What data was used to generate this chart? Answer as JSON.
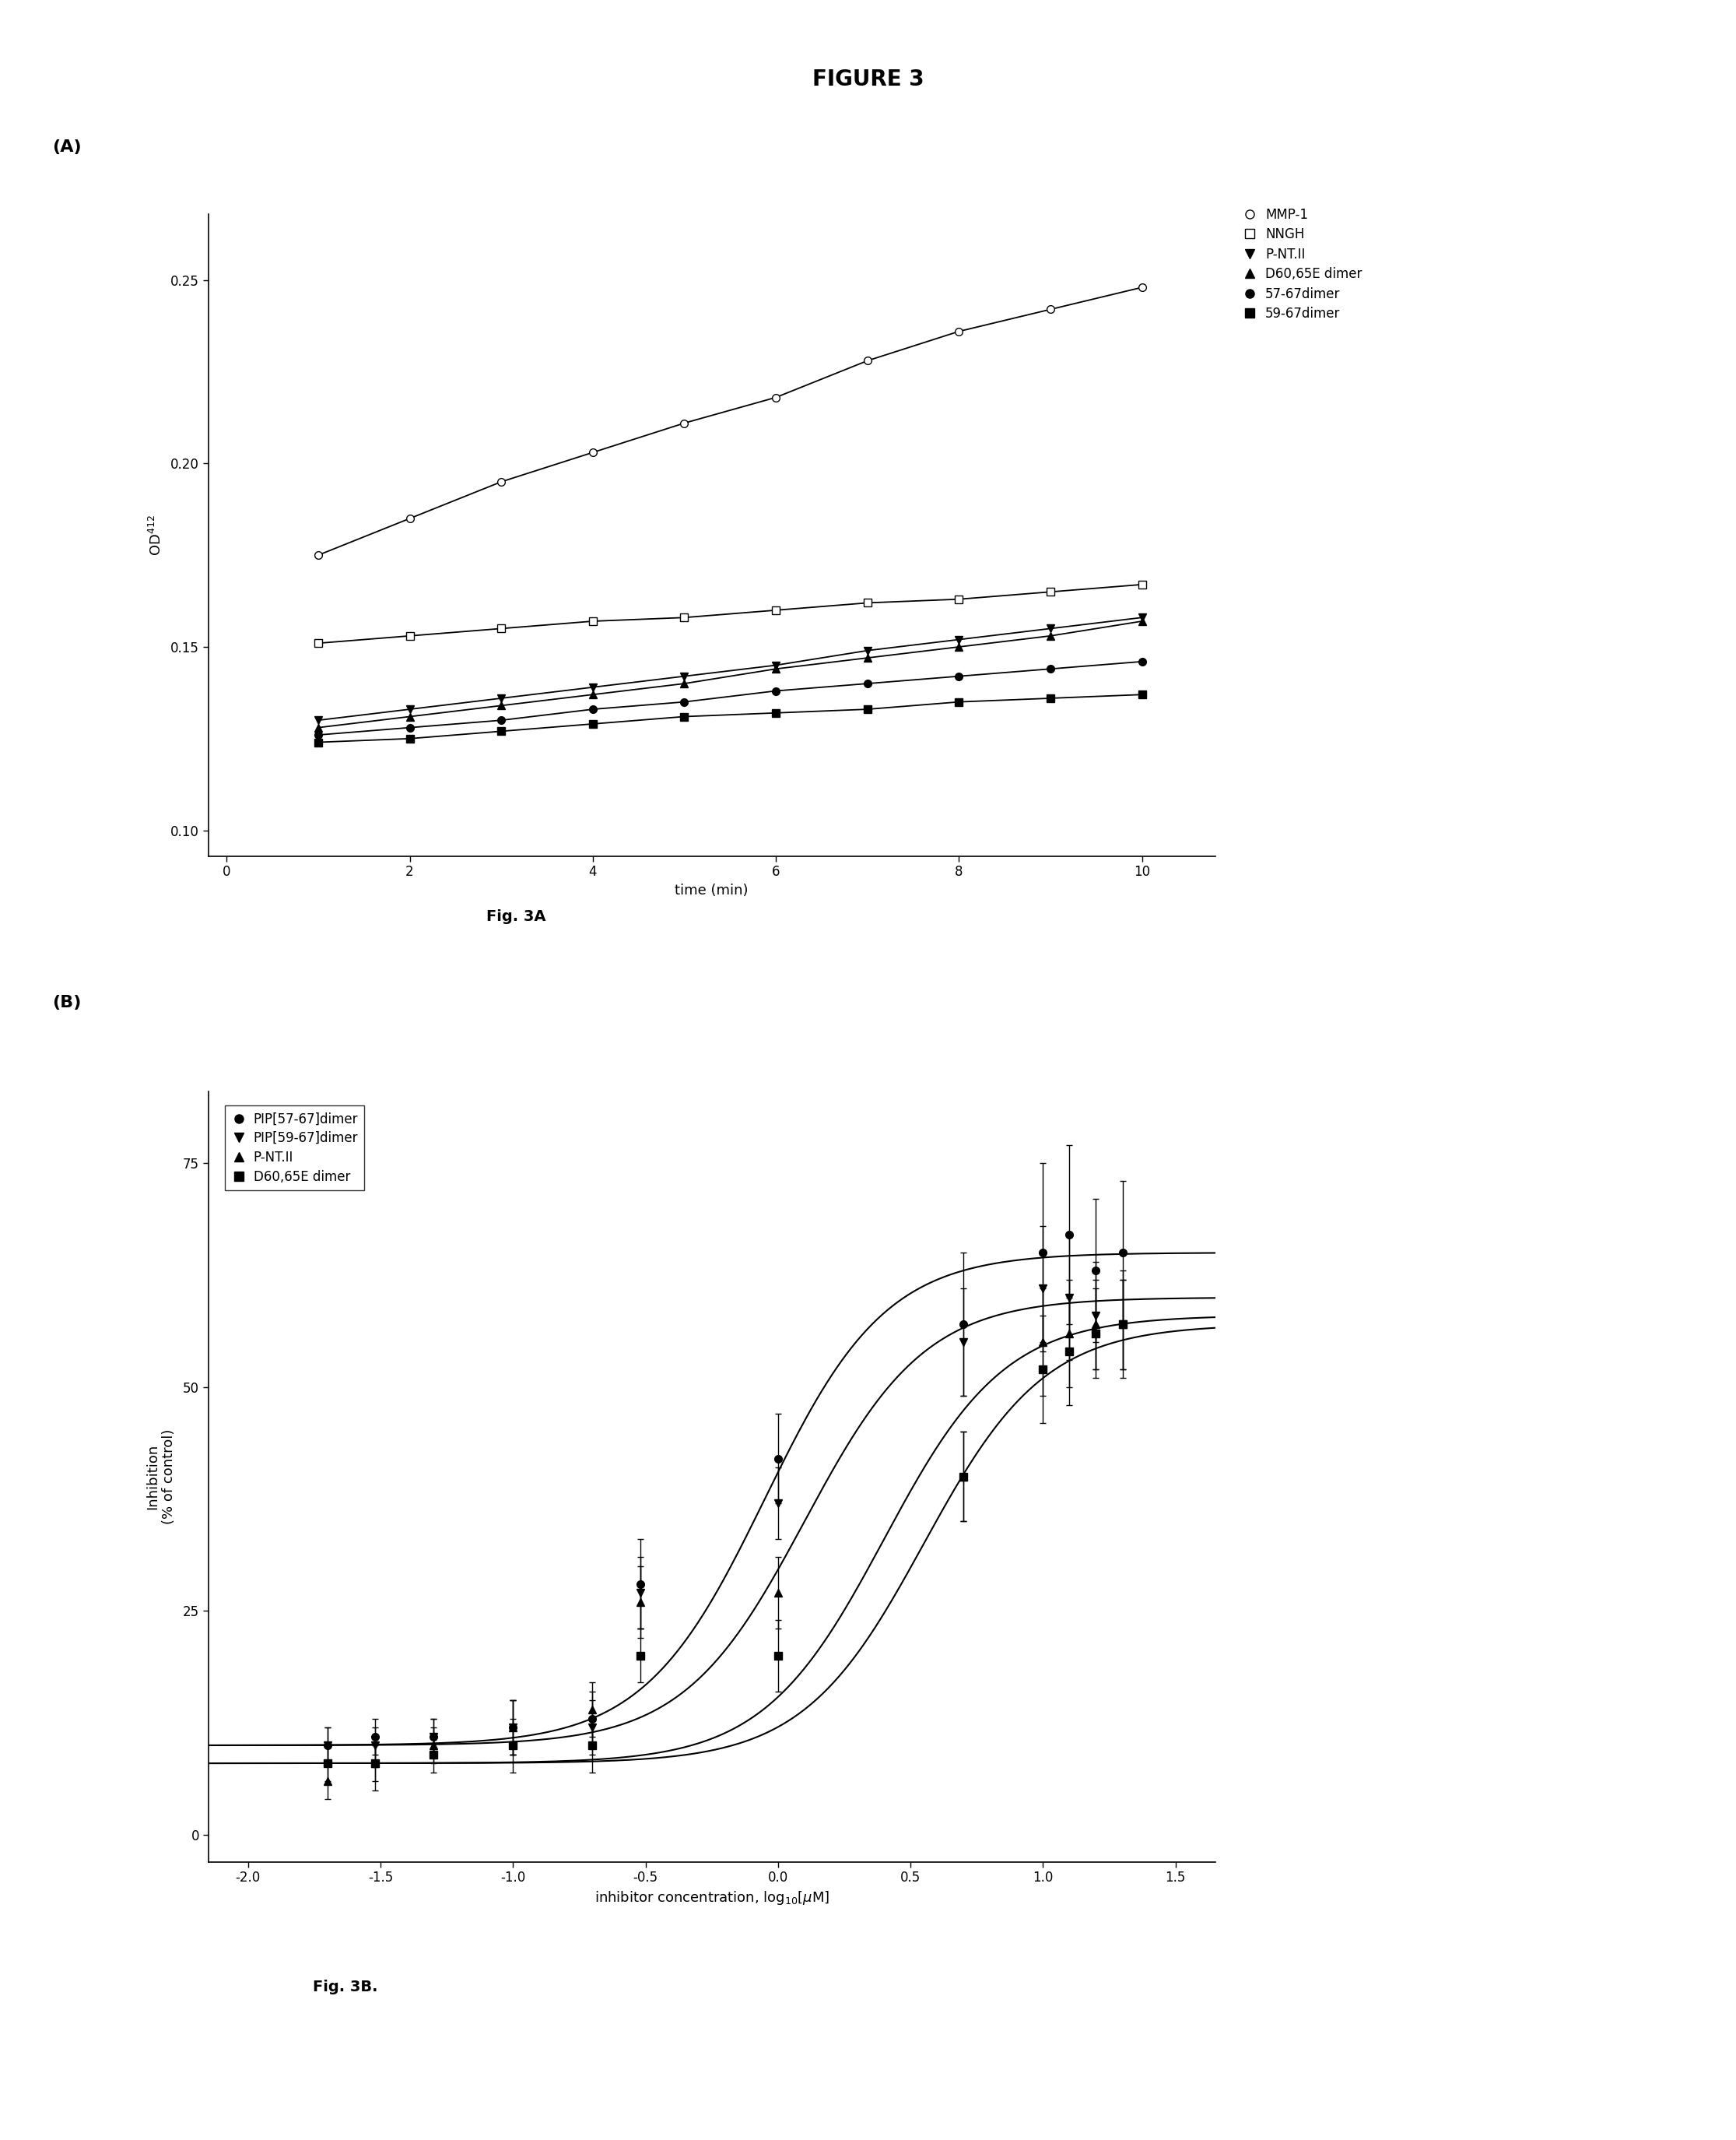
{
  "title": "FIGURE 3",
  "fig_width": 22.31,
  "fig_height": 27.49,
  "panelA": {
    "label": "(A)",
    "fig3a_label": "Fig. 3A",
    "xlabel": "time (min)",
    "ylabel": "OD$^{412}$",
    "xlim": [
      -0.2,
      10.8
    ],
    "ylim": [
      0.093,
      0.268
    ],
    "yticks": [
      0.1,
      0.15,
      0.2,
      0.25
    ],
    "xticks": [
      0,
      2,
      4,
      6,
      8,
      10
    ],
    "series": [
      {
        "label": "MMP-1",
        "marker": "o",
        "markerfacecolor": "white",
        "markeredgecolor": "black",
        "linecolor": "black",
        "x": [
          1,
          2,
          3,
          4,
          5,
          6,
          7,
          8,
          9,
          10
        ],
        "y": [
          0.175,
          0.185,
          0.195,
          0.203,
          0.211,
          0.218,
          0.228,
          0.236,
          0.242,
          0.248
        ],
        "linestyle": "-"
      },
      {
        "label": "NNGH",
        "marker": "s",
        "markerfacecolor": "white",
        "markeredgecolor": "black",
        "linecolor": "black",
        "x": [
          1,
          2,
          3,
          4,
          5,
          6,
          7,
          8,
          9,
          10
        ],
        "y": [
          0.151,
          0.153,
          0.155,
          0.157,
          0.158,
          0.16,
          0.162,
          0.163,
          0.165,
          0.167
        ],
        "linestyle": "-"
      },
      {
        "label": "P-NT.II",
        "marker": "v",
        "markerfacecolor": "black",
        "markeredgecolor": "black",
        "linecolor": "black",
        "x": [
          1,
          2,
          3,
          4,
          5,
          6,
          7,
          8,
          9,
          10
        ],
        "y": [
          0.13,
          0.133,
          0.136,
          0.139,
          0.142,
          0.145,
          0.149,
          0.152,
          0.155,
          0.158
        ],
        "linestyle": "-"
      },
      {
        "label": "D60,65E dimer",
        "marker": "^",
        "markerfacecolor": "black",
        "markeredgecolor": "black",
        "linecolor": "black",
        "x": [
          1,
          2,
          3,
          4,
          5,
          6,
          7,
          8,
          9,
          10
        ],
        "y": [
          0.128,
          0.131,
          0.134,
          0.137,
          0.14,
          0.144,
          0.147,
          0.15,
          0.153,
          0.157
        ],
        "linestyle": "-"
      },
      {
        "label": "57-67dimer",
        "marker": "o",
        "markerfacecolor": "black",
        "markeredgecolor": "black",
        "linecolor": "black",
        "x": [
          1,
          2,
          3,
          4,
          5,
          6,
          7,
          8,
          9,
          10
        ],
        "y": [
          0.126,
          0.128,
          0.13,
          0.133,
          0.135,
          0.138,
          0.14,
          0.142,
          0.144,
          0.146
        ],
        "linestyle": "-"
      },
      {
        "label": "59-67dimer",
        "marker": "s",
        "markerfacecolor": "black",
        "markeredgecolor": "black",
        "linecolor": "black",
        "x": [
          1,
          2,
          3,
          4,
          5,
          6,
          7,
          8,
          9,
          10
        ],
        "y": [
          0.124,
          0.125,
          0.127,
          0.129,
          0.131,
          0.132,
          0.133,
          0.135,
          0.136,
          0.137
        ],
        "linestyle": "-"
      }
    ],
    "legend_labels": [
      "MMP-1",
      "NNGH",
      "P-NT.II",
      "D60,65E dimer",
      "57-67dimer",
      "59-67dimer"
    ]
  },
  "panelB": {
    "label": "(B)",
    "fig3b_label": "Fig. 3B.",
    "xlabel": "inhibitor concentration, log$_{10}$[$\\mu$M]",
    "ylabel": "Inhibition\n(% of control)",
    "xlim": [
      -2.15,
      1.65
    ],
    "ylim": [
      -3,
      83
    ],
    "yticks": [
      0,
      25,
      50,
      75
    ],
    "xticks": [
      -2.0,
      -1.5,
      -1.0,
      -0.5,
      0.0,
      0.5,
      1.0,
      1.5
    ],
    "xtick_labels": [
      "-2.0",
      "-1.5",
      "-1.0",
      "-0.5",
      "0.0",
      "0.5",
      "1.0",
      "1.5"
    ],
    "series": [
      {
        "label": "PIP[57-67]dimer",
        "marker": "o",
        "markerfacecolor": "black",
        "x_data": [
          -1.7,
          -1.52,
          -1.3,
          -1.0,
          -0.7,
          -0.52,
          0.0,
          0.7,
          1.0,
          1.1,
          1.2,
          1.3
        ],
        "y_data": [
          10,
          11,
          11,
          12,
          13,
          28,
          42,
          57,
          65,
          67,
          63,
          65
        ],
        "y_err": [
          2,
          2,
          2,
          3,
          3,
          5,
          5,
          8,
          10,
          10,
          8,
          8
        ],
        "hill_top": 65.0,
        "hill_bottom": 10.0,
        "hill_ec50": -0.05,
        "hill_n": 1.9
      },
      {
        "label": "PIP[59-67]dimer",
        "marker": "v",
        "markerfacecolor": "black",
        "x_data": [
          -1.7,
          -1.52,
          -1.3,
          -1.0,
          -0.7,
          -0.52,
          0.0,
          0.7,
          1.0,
          1.1,
          1.2,
          1.3
        ],
        "y_data": [
          10,
          10,
          11,
          12,
          12,
          27,
          37,
          55,
          61,
          60,
          58,
          57
        ],
        "y_err": [
          2,
          2,
          2,
          3,
          3,
          4,
          4,
          6,
          7,
          7,
          6,
          6
        ],
        "hill_top": 60.0,
        "hill_bottom": 10.0,
        "hill_ec50": 0.1,
        "hill_n": 1.9
      },
      {
        "label": "P-NT.II",
        "marker": "^",
        "markerfacecolor": "black",
        "x_data": [
          -1.7,
          -1.52,
          -1.3,
          -1.0,
          -0.7,
          -0.52,
          0.0,
          0.7,
          1.0,
          1.1,
          1.2,
          1.3
        ],
        "y_data": [
          6,
          8,
          10,
          12,
          14,
          26,
          27,
          40,
          55,
          56,
          57,
          57
        ],
        "y_err": [
          2,
          3,
          2,
          3,
          3,
          4,
          4,
          5,
          6,
          6,
          5,
          5
        ],
        "hill_top": 58.0,
        "hill_bottom": 8.0,
        "hill_ec50": 0.4,
        "hill_n": 1.9
      },
      {
        "label": "D60,65E dimer",
        "marker": "s",
        "markerfacecolor": "black",
        "x_data": [
          -1.7,
          -1.52,
          -1.3,
          -1.0,
          -0.7,
          -0.52,
          0.0,
          0.7,
          1.0,
          1.1,
          1.2,
          1.3
        ],
        "y_data": [
          8,
          8,
          9,
          10,
          10,
          20,
          20,
          40,
          52,
          54,
          56,
          57
        ],
        "y_err": [
          2,
          2,
          2,
          3,
          3,
          3,
          4,
          5,
          6,
          6,
          5,
          5
        ],
        "hill_top": 57.0,
        "hill_bottom": 8.0,
        "hill_ec50": 0.55,
        "hill_n": 1.9
      }
    ]
  }
}
